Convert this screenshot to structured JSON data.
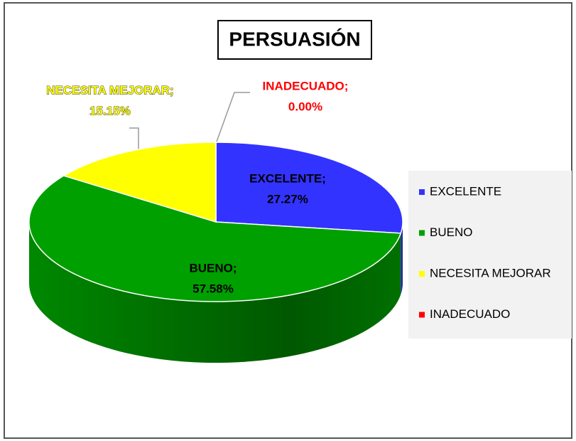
{
  "chart_data": {
    "type": "pie",
    "title": "PERSUASIÓN",
    "categories": [
      "EXCELENTE",
      "BUENO",
      "NECESITA MEJORAR",
      "INADECUADO"
    ],
    "data_label_names": [
      "EXCELENTE;",
      "BUENO;",
      "NECESITA MEJORAR;",
      "INADECUADO;"
    ],
    "values": [
      27.27,
      57.58,
      15.15,
      0
    ],
    "value_labels": [
      "27.27%",
      "57.58%",
      "15.15%",
      "0.00%"
    ],
    "colors": [
      "#3333ff",
      "#00a000",
      "#ffff00",
      "#ff0000"
    ],
    "legend": "right",
    "three_d": true
  }
}
